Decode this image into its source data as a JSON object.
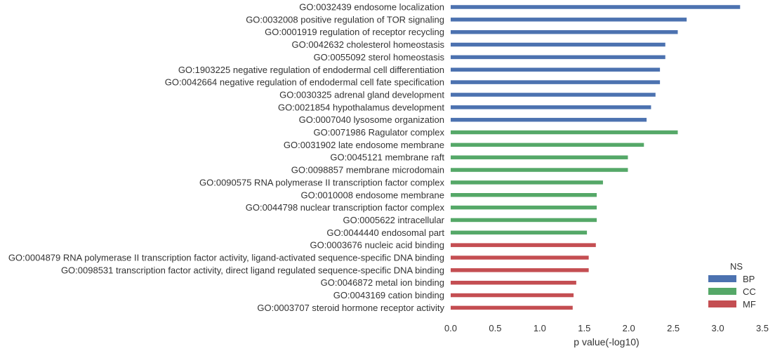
{
  "chart_data": {
    "type": "bar",
    "orientation": "horizontal",
    "xlabel": "p value(-log10)",
    "xlim": [
      0,
      3.5
    ],
    "xticks": [
      "0.0",
      "0.5",
      "1.0",
      "1.5",
      "2.0",
      "2.5",
      "3.0",
      "3.5"
    ],
    "grid": false,
    "legend": {
      "title": "NS",
      "position": "bottom-right",
      "entries": [
        {
          "name": "BP",
          "color": "#4c72b0"
        },
        {
          "name": "CC",
          "color": "#55a868"
        },
        {
          "name": "MF",
          "color": "#c44e52"
        }
      ]
    },
    "bars": [
      {
        "label": "GO:0032439 endosome localization",
        "value": 3.25,
        "group": "BP"
      },
      {
        "label": "GO:0032008 positive regulation of TOR signaling",
        "value": 2.65,
        "group": "BP"
      },
      {
        "label": "GO:0001919 regulation of receptor recycling",
        "value": 2.55,
        "group": "BP"
      },
      {
        "label": "GO:0042632 cholesterol homeostasis",
        "value": 2.41,
        "group": "BP"
      },
      {
        "label": "GO:0055092 sterol homeostasis",
        "value": 2.41,
        "group": "BP"
      },
      {
        "label": "GO:1903225 negative regulation of endodermal cell differentiation",
        "value": 2.35,
        "group": "BP"
      },
      {
        "label": "GO:0042664 negative regulation of endodermal cell fate specification",
        "value": 2.35,
        "group": "BP"
      },
      {
        "label": "GO:0030325 adrenal gland development",
        "value": 2.3,
        "group": "BP"
      },
      {
        "label": "GO:0021854 hypothalamus development",
        "value": 2.25,
        "group": "BP"
      },
      {
        "label": "GO:0007040 lysosome organization",
        "value": 2.2,
        "group": "BP"
      },
      {
        "label": "GO:0071986 Ragulator complex",
        "value": 2.55,
        "group": "CC"
      },
      {
        "label": "GO:0031902 late endosome membrane",
        "value": 2.17,
        "group": "CC"
      },
      {
        "label": "GO:0045121 membrane raft",
        "value": 1.99,
        "group": "CC"
      },
      {
        "label": "GO:0098857 membrane microdomain",
        "value": 1.99,
        "group": "CC"
      },
      {
        "label": "GO:0090575 RNA polymerase II transcription factor complex",
        "value": 1.71,
        "group": "CC"
      },
      {
        "label": "GO:0010008 endosome membrane",
        "value": 1.64,
        "group": "CC"
      },
      {
        "label": "GO:0044798 nuclear transcription factor complex",
        "value": 1.64,
        "group": "CC"
      },
      {
        "label": "GO:0005622 intracellular",
        "value": 1.64,
        "group": "CC"
      },
      {
        "label": "GO:0044440 endosomal part",
        "value": 1.53,
        "group": "CC"
      },
      {
        "label": "GO:0003676 nucleic acid binding",
        "value": 1.63,
        "group": "MF"
      },
      {
        "label": "GO:0004879 RNA polymerase II transcription factor activity, ligand-activated sequence-specific DNA binding",
        "value": 1.55,
        "group": "MF"
      },
      {
        "label": "GO:0098531 transcription factor activity, direct ligand regulated sequence-specific DNA binding",
        "value": 1.55,
        "group": "MF"
      },
      {
        "label": "GO:0046872 metal ion binding",
        "value": 1.41,
        "group": "MF"
      },
      {
        "label": "GO:0043169 cation binding",
        "value": 1.38,
        "group": "MF"
      },
      {
        "label": "GO:0003707 steroid hormone receptor activity",
        "value": 1.37,
        "group": "MF"
      }
    ]
  }
}
